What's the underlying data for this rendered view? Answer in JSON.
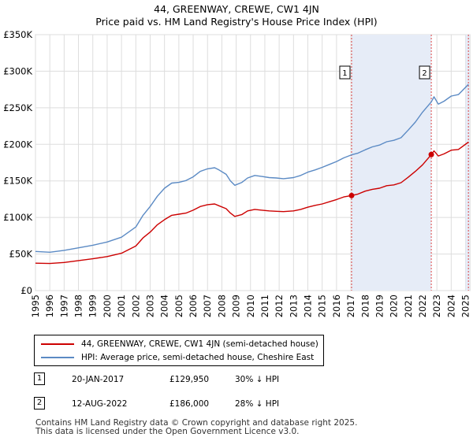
{
  "title_line1": "44, GREENWAY, CREWE, CW1 4JN",
  "title_line2": "Price paid vs. HM Land Registry's House Price Index (HPI)",
  "chart_data": {
    "type": "line",
    "x_range": [
      1995,
      2025.3
    ],
    "ylim": [
      0,
      350000
    ],
    "y_ticks": [
      0,
      50000,
      100000,
      150000,
      200000,
      250000,
      300000,
      350000
    ],
    "y_tick_labels": [
      "£0",
      "£50K",
      "£100K",
      "£150K",
      "£200K",
      "£250K",
      "£300K",
      "£350K"
    ],
    "x_tick_labels": [
      "1995",
      "1996",
      "1997",
      "1998",
      "1999",
      "2000",
      "2001",
      "2002",
      "2003",
      "2004",
      "2005",
      "2006",
      "2007",
      "2008",
      "2009",
      "2010",
      "2011",
      "2012",
      "2013",
      "2014",
      "2015",
      "2016",
      "2017",
      "2018",
      "2019",
      "2020",
      "2021",
      "2022",
      "2023",
      "2024",
      "2025"
    ],
    "grid": true,
    "colors": {
      "property": "#cc0000",
      "hpi": "#5b8ac4",
      "shade": "#e6ecf7",
      "vline": "#dd4444"
    },
    "series": [
      {
        "name": "44, GREENWAY, CREWE, CW1 4JN (semi-detached house)",
        "color": "#cc0000",
        "points": [
          [
            1995,
            37500
          ],
          [
            1996,
            37000
          ],
          [
            1997,
            38500
          ],
          [
            1998,
            41000
          ],
          [
            1999,
            43500
          ],
          [
            2000,
            46500
          ],
          [
            2001,
            51000
          ],
          [
            2002,
            61000
          ],
          [
            2002.5,
            72000
          ],
          [
            2003,
            80000
          ],
          [
            2003.5,
            90000
          ],
          [
            2004,
            97000
          ],
          [
            2004.5,
            103000
          ],
          [
            2005,
            104500
          ],
          [
            2005.5,
            106000
          ],
          [
            2006,
            110000
          ],
          [
            2006.5,
            115000
          ],
          [
            2007,
            117500
          ],
          [
            2007.5,
            118500
          ],
          [
            2007.8,
            116000
          ],
          [
            2008.3,
            112000
          ],
          [
            2008.6,
            106000
          ],
          [
            2008.9,
            101500
          ],
          [
            2009.4,
            104000
          ],
          [
            2009.8,
            109000
          ],
          [
            2010.3,
            111000
          ],
          [
            2010.8,
            110000
          ],
          [
            2011.3,
            109000
          ],
          [
            2011.8,
            108500
          ],
          [
            2012.3,
            108000
          ],
          [
            2013,
            109000
          ],
          [
            2013.5,
            111000
          ],
          [
            2014,
            114000
          ],
          [
            2014.5,
            116500
          ],
          [
            2015,
            118500
          ],
          [
            2015.5,
            121500
          ],
          [
            2016,
            124500
          ],
          [
            2016.5,
            128000
          ],
          [
            2017.05,
            129950
          ],
          [
            2017.5,
            132000
          ],
          [
            2018,
            136000
          ],
          [
            2018.5,
            138500
          ],
          [
            2019,
            140000
          ],
          [
            2019.5,
            143500
          ],
          [
            2020,
            144500
          ],
          [
            2020.5,
            147500
          ],
          [
            2021,
            155000
          ],
          [
            2021.5,
            163000
          ],
          [
            2022,
            172000
          ],
          [
            2022.61,
            186000
          ],
          [
            2022.8,
            191000
          ],
          [
            2023.1,
            184000
          ],
          [
            2023.5,
            187000
          ],
          [
            2024,
            192000
          ],
          [
            2024.5,
            193000
          ],
          [
            2025.2,
            203000
          ]
        ]
      },
      {
        "name": "HPI: Average price, semi-detached house, Cheshire East",
        "color": "#5b8ac4",
        "points": [
          [
            1995,
            53500
          ],
          [
            1996,
            52500
          ],
          [
            1997,
            55000
          ],
          [
            1998,
            58500
          ],
          [
            1999,
            62000
          ],
          [
            2000,
            66500
          ],
          [
            2001,
            73000
          ],
          [
            2002,
            87000
          ],
          [
            2002.5,
            103000
          ],
          [
            2003,
            115000
          ],
          [
            2003.5,
            129000
          ],
          [
            2004,
            140000
          ],
          [
            2004.5,
            147000
          ],
          [
            2005,
            148000
          ],
          [
            2005.5,
            150500
          ],
          [
            2006,
            155500
          ],
          [
            2006.5,
            163000
          ],
          [
            2007,
            166500
          ],
          [
            2007.5,
            168000
          ],
          [
            2007.8,
            165000
          ],
          [
            2008.3,
            159000
          ],
          [
            2008.6,
            150000
          ],
          [
            2008.9,
            144000
          ],
          [
            2009.4,
            148000
          ],
          [
            2009.8,
            154000
          ],
          [
            2010.3,
            157500
          ],
          [
            2010.8,
            156000
          ],
          [
            2011.3,
            154500
          ],
          [
            2011.8,
            154000
          ],
          [
            2012.3,
            153000
          ],
          [
            2013,
            154500
          ],
          [
            2013.5,
            157500
          ],
          [
            2014,
            162000
          ],
          [
            2014.5,
            165000
          ],
          [
            2015,
            168500
          ],
          [
            2015.5,
            172500
          ],
          [
            2016,
            176500
          ],
          [
            2016.5,
            181500
          ],
          [
            2017.05,
            185700
          ],
          [
            2017.5,
            188000
          ],
          [
            2018,
            192500
          ],
          [
            2018.5,
            196500
          ],
          [
            2019,
            199000
          ],
          [
            2019.5,
            203500
          ],
          [
            2020,
            205500
          ],
          [
            2020.5,
            209000
          ],
          [
            2021,
            219500
          ],
          [
            2021.5,
            230500
          ],
          [
            2022,
            244000
          ],
          [
            2022.61,
            258000
          ],
          [
            2022.8,
            265000
          ],
          [
            2023.1,
            255000
          ],
          [
            2023.5,
            259000
          ],
          [
            2024,
            266000
          ],
          [
            2024.5,
            268000
          ],
          [
            2025.2,
            282000
          ]
        ]
      }
    ],
    "sales": [
      {
        "label": "1",
        "x": 2017.05,
        "price": 129950
      },
      {
        "label": "2",
        "x": 2022.61,
        "price": 186000
      }
    ]
  },
  "legend": {
    "property_label": "44, GREENWAY, CREWE, CW1 4JN (semi-detached house)",
    "hpi_label": "HPI: Average price, semi-detached house, Cheshire East"
  },
  "transactions": [
    {
      "num": "1",
      "date": "20-JAN-2017",
      "price": "£129,950",
      "hpi": "30% ↓ HPI"
    },
    {
      "num": "2",
      "date": "12-AUG-2022",
      "price": "£186,000",
      "hpi": "28% ↓ HPI"
    }
  ],
  "footer_line1": "Contains HM Land Registry data © Crown copyright and database right 2025.",
  "footer_line2": "This data is licensed under the Open Government Licence v3.0."
}
